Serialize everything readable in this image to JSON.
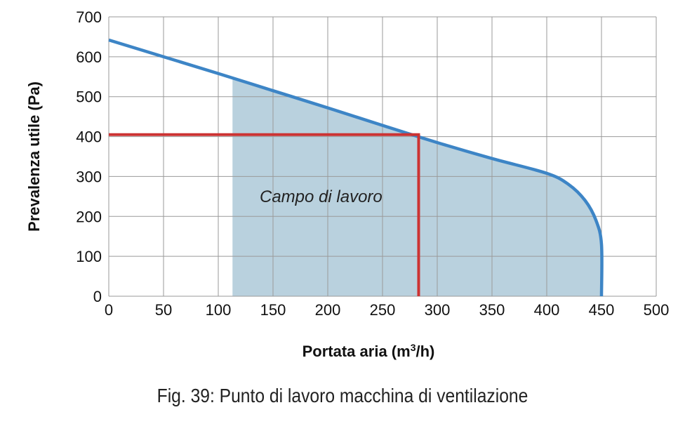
{
  "chart_data": {
    "type": "line",
    "title": "",
    "xlabel": "Portata aria (m",
    "xlabel_sup": "3",
    "xlabel_tail": "/h)",
    "ylabel": "Prevalenza utile (Pa)",
    "xlim": [
      0,
      500
    ],
    "ylim": [
      0,
      700
    ],
    "x_ticks": [
      "0",
      "50",
      "100",
      "150",
      "200",
      "250",
      "300",
      "350",
      "400",
      "450",
      "500"
    ],
    "y_ticks": [
      "0",
      "100",
      "200",
      "300",
      "400",
      "500",
      "600",
      "700"
    ],
    "grid": true,
    "series": [
      {
        "name": "",
        "color": "#3d85c6",
        "x": [
          0,
          50,
          100,
          150,
          200,
          250,
          300,
          350,
          400,
          420,
          435,
          445,
          450,
          450
        ],
        "y": [
          642,
          600,
          558,
          515,
          472,
          428,
          385,
          345,
          308,
          280,
          240,
          190,
          130,
          0
        ]
      }
    ],
    "working_area": {
      "label": "Campo di lavoro",
      "x_min": 113,
      "color": "#b9d1de"
    },
    "operating_point": {
      "x": 283,
      "y": 405,
      "color": "#cc3333"
    }
  },
  "caption": "Fig. 39: Punto di lavoro macchina di ventilazione"
}
